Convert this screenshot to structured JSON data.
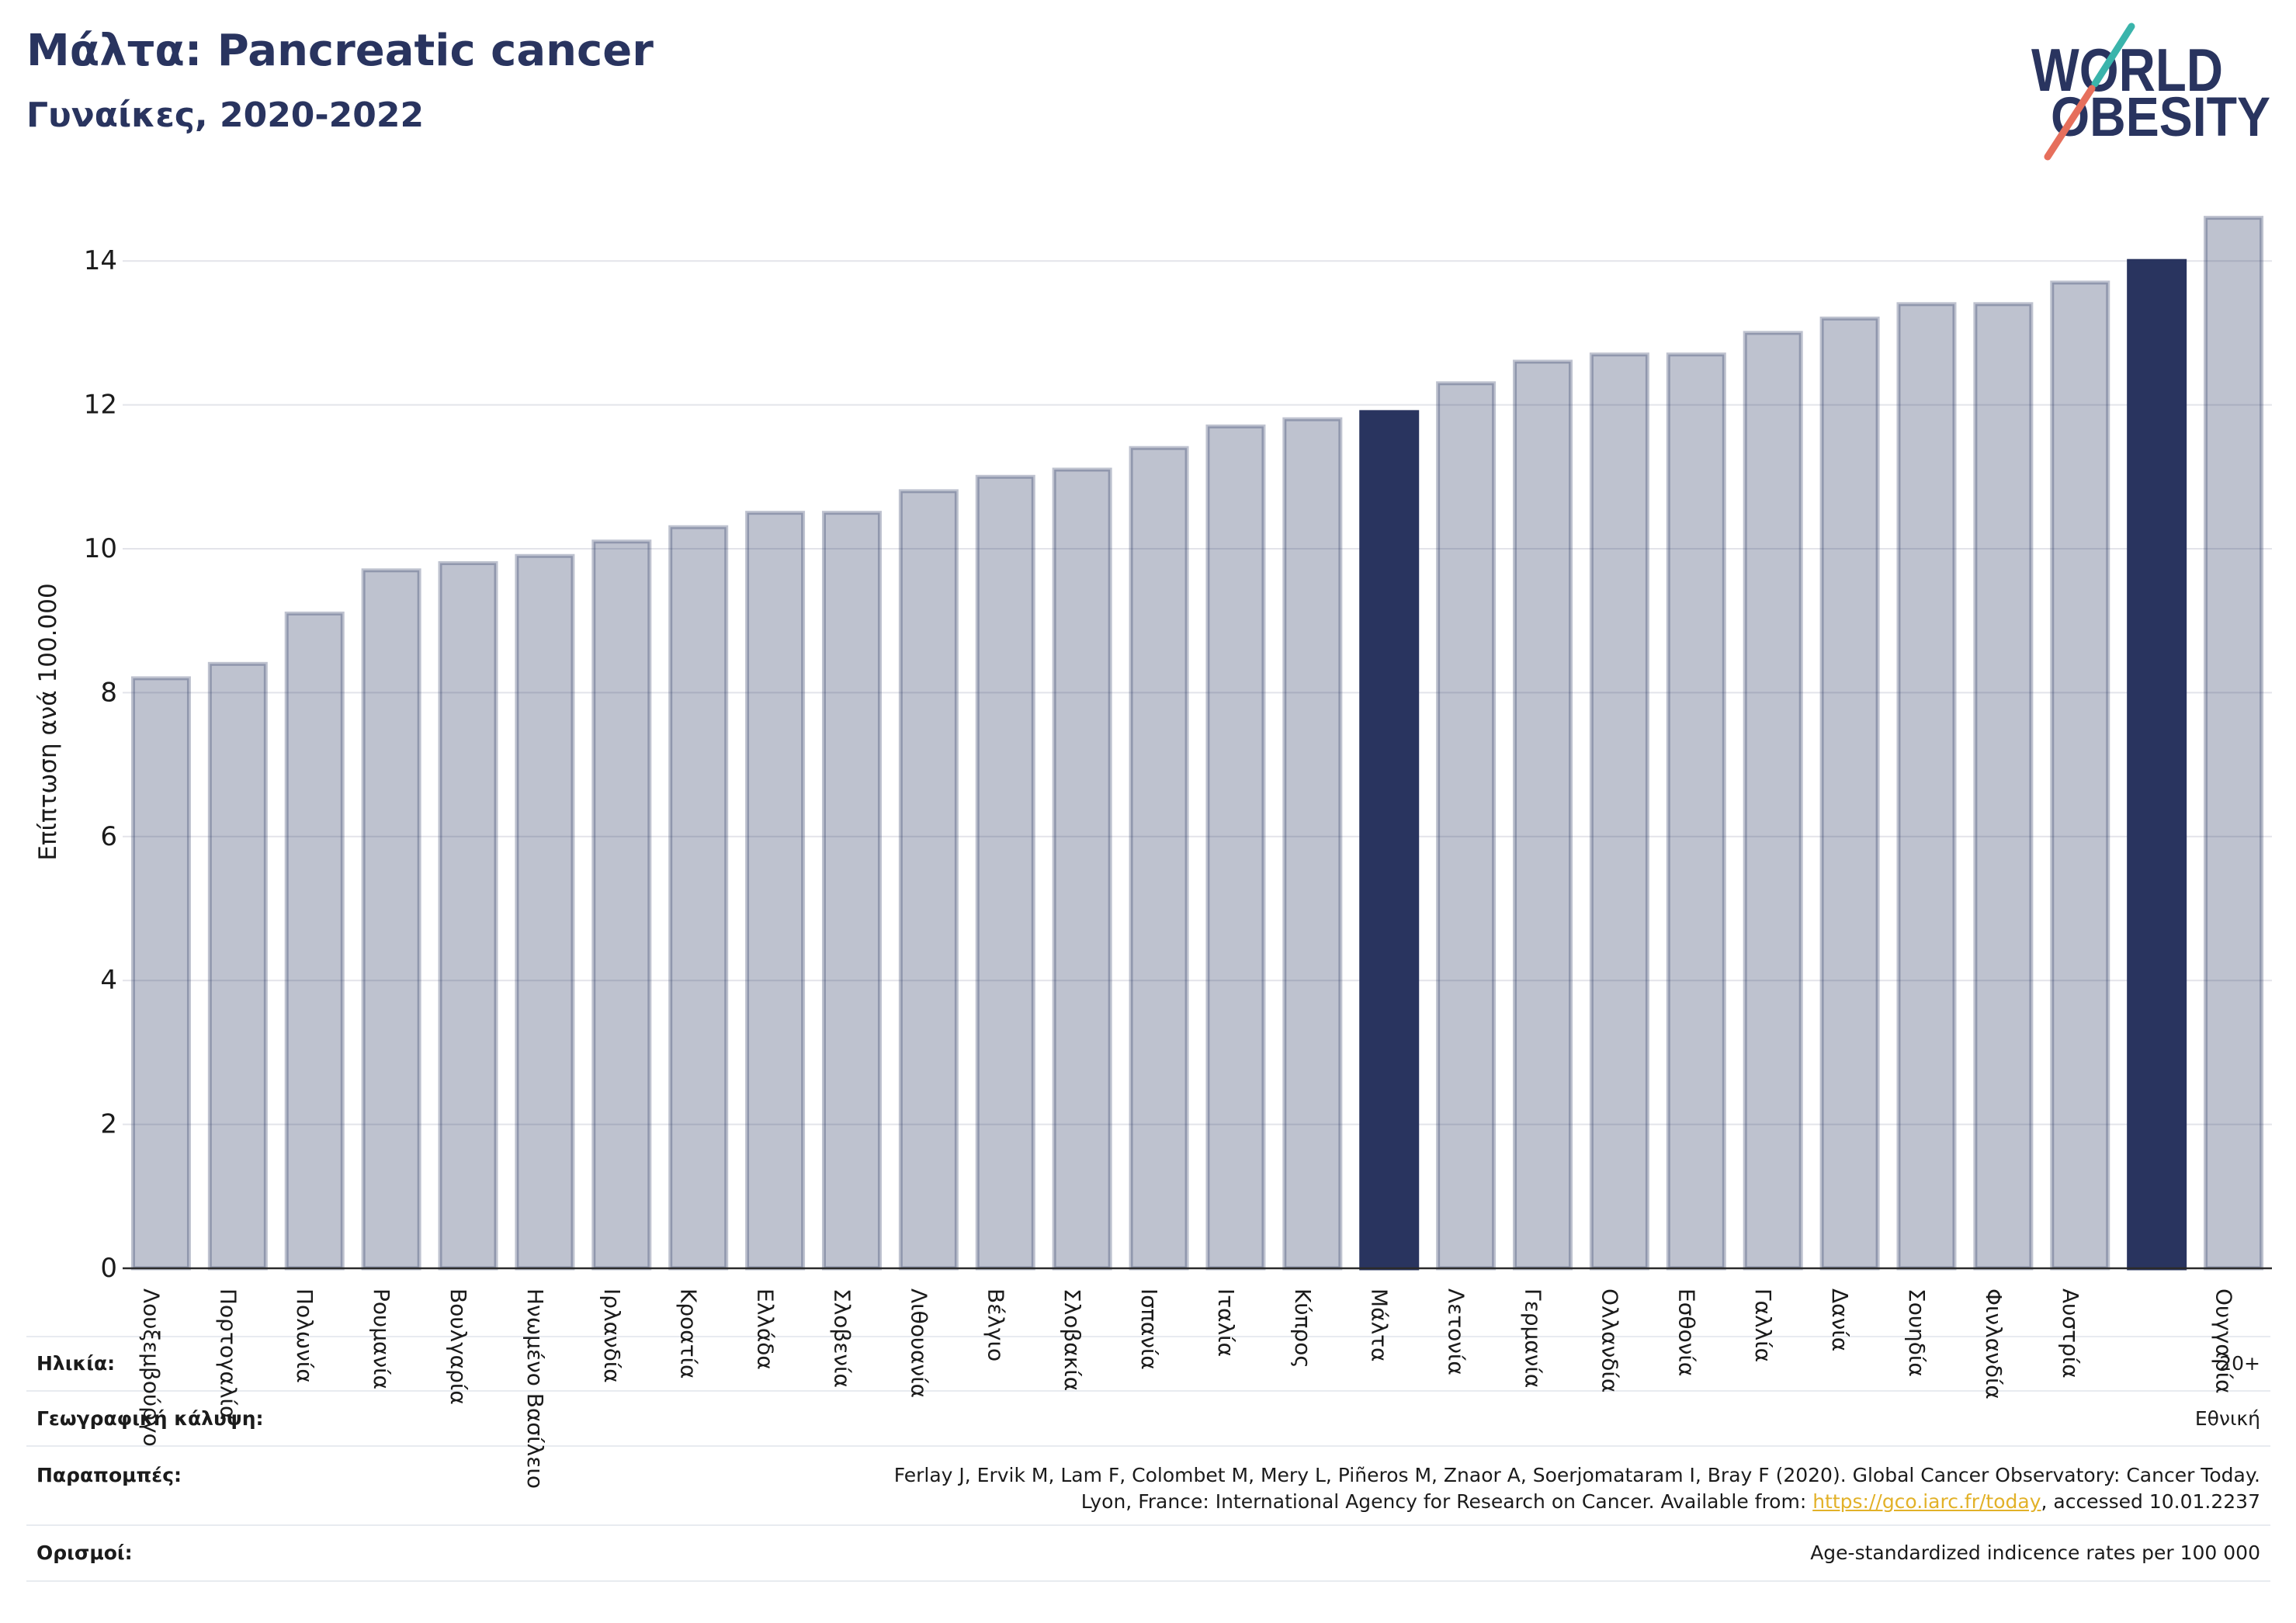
{
  "chart_data": {
    "type": "bar",
    "title": "Μάλτα: Pancreatic cancer",
    "subtitle": "Γυναίκες, 2020-2022",
    "xlabel": "",
    "ylabel": "Επίπτωση ανά 100.000",
    "ylim": [
      0,
      15
    ],
    "yticks": [
      0,
      2,
      4,
      6,
      8,
      10,
      12,
      14
    ],
    "grid": true,
    "categories": [
      "Λουξεμβούργο",
      "Πορτογαλία",
      "Πολωνία",
      "Ρουμανία",
      "Βουλγαρία",
      "Ηνωμένο Βασίλειο",
      "Ιρλανδία",
      "Κροατία",
      "Ελλάδα",
      "Σλοβενία",
      "Λιθουανία",
      "Βέλγιο",
      "Σλοβακία",
      "Ισπανία",
      "Ιταλία",
      "Κύπρος",
      "Μάλτα",
      "Λετονία",
      "Γερμανία",
      "Ολλανδία",
      "Εσθονία",
      "Γαλλία",
      "Δανία",
      "Σουηδία",
      "Φινλανδία",
      "Αυστρία",
      "",
      "Ουγγαρία"
    ],
    "values": [
      8.2,
      8.4,
      9.1,
      9.7,
      9.8,
      9.9,
      10.1,
      10.3,
      10.5,
      10.5,
      10.8,
      11.0,
      11.1,
      11.4,
      11.7,
      11.8,
      11.9,
      12.3,
      12.6,
      12.7,
      12.7,
      13.0,
      13.2,
      13.4,
      13.4,
      13.7,
      14.0,
      14.6
    ],
    "highlighted": [
      16,
      26
    ]
  },
  "logo": {
    "line1": "WORLD",
    "line2": "OBESITY"
  },
  "footer": {
    "age": {
      "label": "Ηλικία:",
      "value": "20+"
    },
    "coverage": {
      "label": "Γεωγραφική κάλυψη:",
      "value": "Εθνική"
    },
    "references": {
      "label": "Παραπομπές:",
      "line1": "Ferlay J, Ervik M, Lam F, Colombet M, Mery L, Piñeros M, Znaor A, Soerjomataram I, Bray F (2020). Global Cancer Observatory: Cancer Today.",
      "line2_prefix": "Lyon, France: International Agency for Research on Cancer. Available from: ",
      "link": "https://gco.iarc.fr/today",
      "line2_suffix": ", accessed 10.01.2237"
    },
    "definitions": {
      "label": "Ορισμοί:",
      "value": "Age-standardized indicence rates per 100 000"
    }
  },
  "colors": {
    "title": "#29345f",
    "bar": "#29345f",
    "highlight": "#29345f",
    "grid": "#e3e4ea",
    "axis": "#2b2b2b",
    "link": "#e2b128",
    "logo_text": "#29345f",
    "logo_teal": "#3ab4ab",
    "logo_coral": "#e66f5c"
  }
}
